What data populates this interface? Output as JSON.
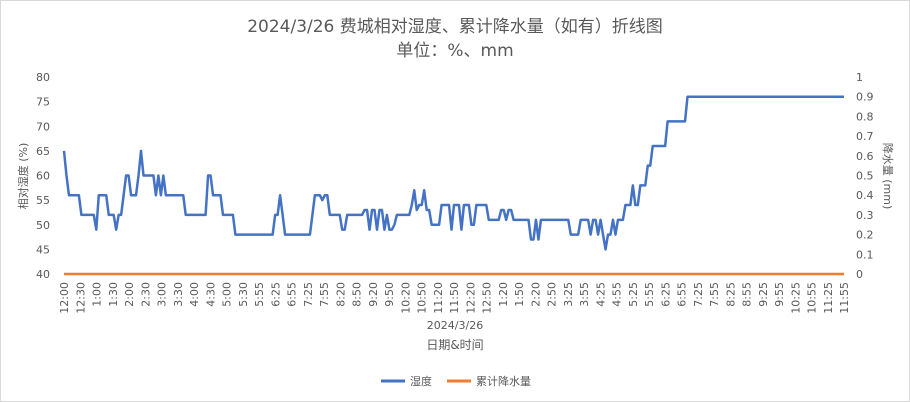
{
  "chart_data": {
    "type": "line",
    "title": "2024/3/26 费城相对湿度、累计降水量（如有）折线图",
    "subtitle": "单位：%、mm",
    "xlabel": "日期&时间",
    "date_label": "2024/3/26",
    "ylabel_left": "相对湿度 (%)",
    "ylabel_right": "降水量 (mm)",
    "ylim_left": [
      40,
      80
    ],
    "ylim_right": [
      0,
      1
    ],
    "yticks_left": [
      "40",
      "45",
      "50",
      "55",
      "60",
      "65",
      "70",
      "75",
      "80"
    ],
    "yticks_right": [
      "0",
      "0.1",
      "0.2",
      "0.3",
      "0.4",
      "0.5",
      "0.6",
      "0.7",
      "0.8",
      "0.9",
      "1"
    ],
    "x_tick_labels": [
      "12:00",
      "12:30",
      "1:00",
      "1:30",
      "2:00",
      "2:30",
      "3:00",
      "3:30",
      "4:00",
      "4:30",
      "5:00",
      "5:30",
      "5:55",
      "6:25",
      "6:55",
      "7:25",
      "7:55",
      "8:20",
      "8:50",
      "9:20",
      "9:50",
      "10:20",
      "10:50",
      "11:20",
      "11:50",
      "12:20",
      "12:50",
      "1:20",
      "1:50",
      "2:20",
      "2:50",
      "3:25",
      "3:55",
      "4:25",
      "4:55",
      "5:25",
      "5:55",
      "6:25",
      "6:55",
      "7:25",
      "7:55",
      "8:25",
      "8:55",
      "9:25",
      "9:55",
      "10:25",
      "10:55",
      "11:25",
      "11:55"
    ],
    "legend": "bottom",
    "grid": false,
    "series": [
      {
        "name": "湿度",
        "axis": "left",
        "color": "#4472C4",
        "values": [
          65,
          60,
          56,
          56,
          56,
          56,
          56,
          52,
          52,
          52,
          52,
          52,
          52,
          49,
          56,
          56,
          56,
          56,
          52,
          52,
          52,
          49,
          52,
          52,
          56,
          60,
          60,
          56,
          56,
          56,
          60,
          65,
          60,
          60,
          60,
          60,
          60,
          56,
          60,
          56,
          60,
          56,
          56,
          56,
          56,
          56,
          56,
          56,
          56,
          52,
          52,
          52,
          52,
          52,
          52,
          52,
          52,
          52,
          60,
          60,
          56,
          56,
          56,
          56,
          52,
          52,
          52,
          52,
          52,
          48,
          48,
          48,
          48,
          48,
          48,
          48,
          48,
          48,
          48,
          48,
          48,
          48,
          48,
          48,
          48,
          52,
          52,
          56,
          52,
          48,
          48,
          48,
          48,
          48,
          48,
          48,
          48,
          48,
          48,
          48,
          52,
          56,
          56,
          56,
          55,
          56,
          56,
          52,
          52,
          52,
          52,
          52,
          49,
          49,
          52,
          52,
          52,
          52,
          52,
          52,
          52,
          53,
          53,
          49,
          53,
          53,
          49,
          53,
          53,
          49,
          52,
          49,
          49,
          50,
          52,
          52,
          52,
          52,
          52,
          52,
          54,
          57,
          53,
          54,
          54,
          57,
          53,
          53,
          50,
          50,
          50,
          50,
          54,
          54,
          54,
          54,
          49,
          54,
          54,
          54,
          49,
          54,
          54,
          54,
          50,
          50,
          54,
          54,
          54,
          54,
          54,
          51,
          51,
          51,
          51,
          51,
          53,
          53,
          51,
          53,
          53,
          51,
          51,
          51,
          51,
          51,
          51,
          51,
          47,
          47,
          51,
          47,
          51,
          51,
          51,
          51,
          51,
          51,
          51,
          51,
          51,
          51,
          51,
          51,
          48,
          48,
          48,
          48,
          51,
          51,
          51,
          51,
          48,
          51,
          51,
          48,
          51,
          48,
          45,
          48,
          48,
          51,
          48,
          51,
          51,
          51,
          54,
          54,
          54,
          58,
          54,
          54,
          58,
          58,
          58,
          62,
          62,
          66,
          66,
          66,
          66,
          66,
          66,
          71,
          71,
          71,
          71,
          71,
          71,
          71,
          71,
          76,
          76,
          76,
          76,
          76,
          76,
          76,
          76,
          76,
          76,
          76,
          76,
          76,
          76,
          76,
          76,
          76,
          76,
          76,
          76,
          76,
          76,
          76,
          76,
          76,
          76,
          76,
          76,
          76,
          76,
          76,
          76,
          76,
          76,
          76,
          76,
          76,
          76,
          76,
          76,
          76,
          76,
          76,
          76,
          76,
          76,
          76,
          76,
          76,
          76,
          76,
          76,
          76,
          76,
          76,
          76,
          76,
          76,
          76,
          76,
          76,
          76,
          76,
          76
        ]
      },
      {
        "name": "累计降水量",
        "axis": "right",
        "color": "#ED7D31",
        "values": [
          0,
          0
        ]
      }
    ]
  }
}
